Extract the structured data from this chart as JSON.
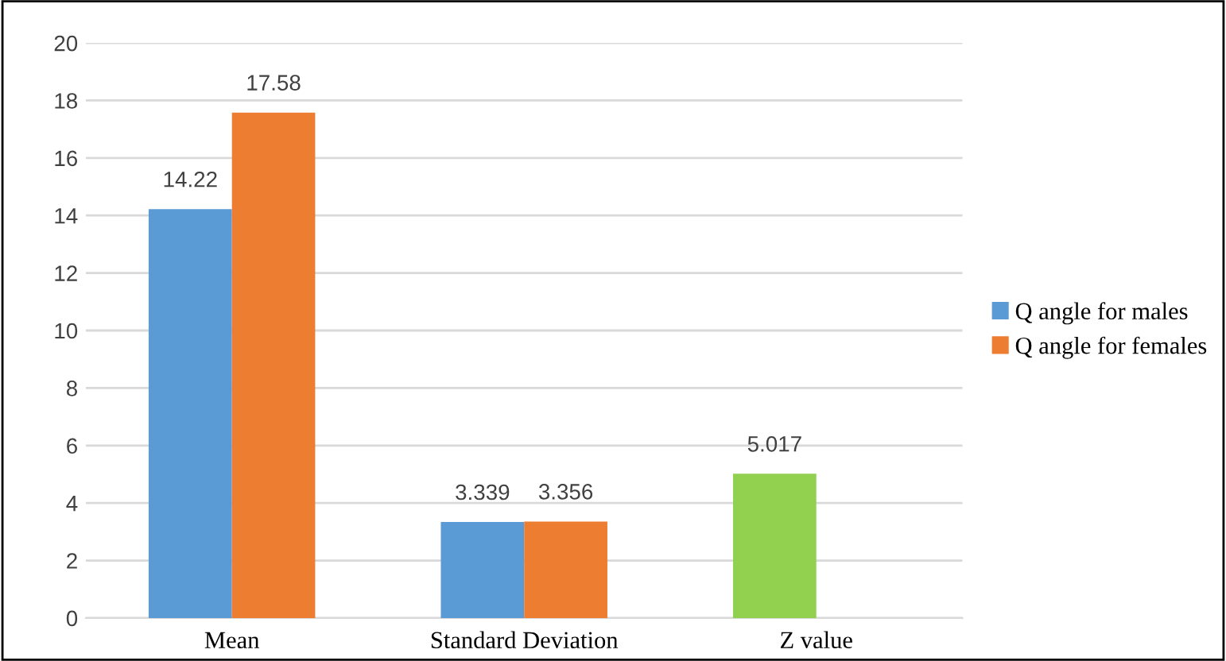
{
  "chart_data": {
    "type": "bar",
    "categories": [
      "Mean",
      "Standard Deviation",
      "Z value"
    ],
    "series": [
      {
        "name": "Q angle for males",
        "color": "#5b9bd5",
        "colors": [
          "#5b9bd5",
          "#5b9bd5",
          "#92d050"
        ],
        "values": [
          14.22,
          3.339,
          5.017
        ]
      },
      {
        "name": "Q angle for females",
        "color": "#ed7d31",
        "values": [
          17.58,
          3.356,
          null
        ]
      }
    ],
    "ylim": [
      0,
      20
    ],
    "yticks": [
      0,
      2,
      4,
      6,
      8,
      10,
      12,
      14,
      16,
      18,
      20
    ],
    "grid": "y",
    "legend": "right",
    "data_labels": true
  }
}
